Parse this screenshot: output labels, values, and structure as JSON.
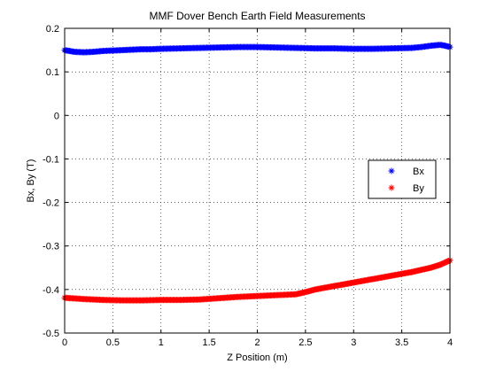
{
  "chart_data": {
    "type": "scatter",
    "title": "MMF Dover Bench Earth Field Measurements",
    "xlabel": "Z Position (m)",
    "ylabel": "Bx, By (T)",
    "xlim": [
      0,
      4
    ],
    "ylim": [
      -0.5,
      0.2
    ],
    "xticks": [
      0,
      0.5,
      1,
      1.5,
      2,
      2.5,
      3,
      3.5,
      4
    ],
    "xtick_labels": [
      "0",
      "0.5",
      "1",
      "1.5",
      "2",
      "2.5",
      "3",
      "3.5",
      "4"
    ],
    "yticks": [
      0.2,
      0.1,
      0,
      -0.1,
      -0.2,
      -0.3,
      -0.4,
      -0.5
    ],
    "ytick_labels": [
      "0.2",
      "0.1",
      "0",
      "-0.1",
      "-0.2",
      "-0.3",
      "-0.4",
      "-0.5"
    ],
    "grid": true,
    "legend_position": "right",
    "marker": "*",
    "series": [
      {
        "name": "Bx",
        "color": "#0000ff",
        "x": [
          0,
          0.1,
          0.2,
          0.3,
          0.4,
          0.5,
          0.6,
          0.7,
          0.8,
          0.9,
          1.0,
          1.2,
          1.4,
          1.6,
          1.8,
          2.0,
          2.2,
          2.4,
          2.6,
          2.8,
          3.0,
          3.2,
          3.4,
          3.6,
          3.7,
          3.8,
          3.9,
          3.95,
          4.0
        ],
        "y": [
          0.15,
          0.146,
          0.145,
          0.146,
          0.148,
          0.149,
          0.15,
          0.151,
          0.152,
          0.152,
          0.153,
          0.154,
          0.155,
          0.156,
          0.157,
          0.157,
          0.156,
          0.155,
          0.154,
          0.154,
          0.153,
          0.153,
          0.154,
          0.155,
          0.157,
          0.16,
          0.162,
          0.16,
          0.157
        ]
      },
      {
        "name": "By",
        "color": "#ff0000",
        "x": [
          0,
          0.2,
          0.4,
          0.6,
          0.8,
          1.0,
          1.2,
          1.4,
          1.6,
          1.8,
          2.0,
          2.2,
          2.4,
          2.5,
          2.6,
          2.8,
          3.0,
          3.2,
          3.4,
          3.6,
          3.8,
          3.9,
          4.0
        ],
        "y": [
          -0.419,
          -0.422,
          -0.424,
          -0.425,
          -0.425,
          -0.424,
          -0.424,
          -0.423,
          -0.42,
          -0.417,
          -0.415,
          -0.413,
          -0.411,
          -0.406,
          -0.4,
          -0.392,
          -0.384,
          -0.376,
          -0.368,
          -0.36,
          -0.35,
          -0.343,
          -0.333
        ]
      }
    ]
  }
}
